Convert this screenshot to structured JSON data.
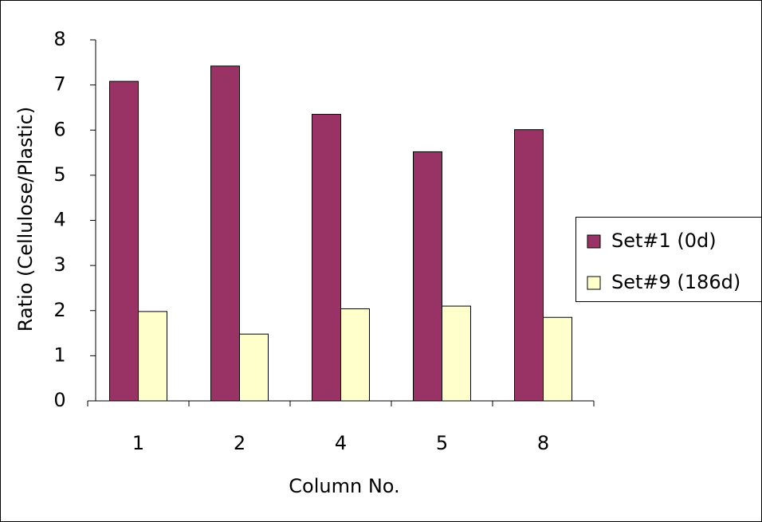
{
  "chart_data": {
    "type": "bar",
    "x_label": "Column No.",
    "y_label": "Ratio (Cellulose/Plastic)",
    "categories": [
      "1",
      "2",
      "4",
      "5",
      "8"
    ],
    "series": [
      {
        "name": "Set#1 (0d)",
        "color": "#993366",
        "values": [
          7.08,
          7.42,
          6.35,
          5.52,
          6.01
        ]
      },
      {
        "name": "Set#9 (186d)",
        "color": "#ffffcc",
        "values": [
          1.98,
          1.48,
          2.04,
          2.1,
          1.85
        ]
      }
    ],
    "ylim": [
      0,
      8
    ],
    "yticks": [
      0,
      1,
      2,
      3,
      4,
      5,
      6,
      7,
      8
    ],
    "grid": false,
    "legend": "right"
  }
}
